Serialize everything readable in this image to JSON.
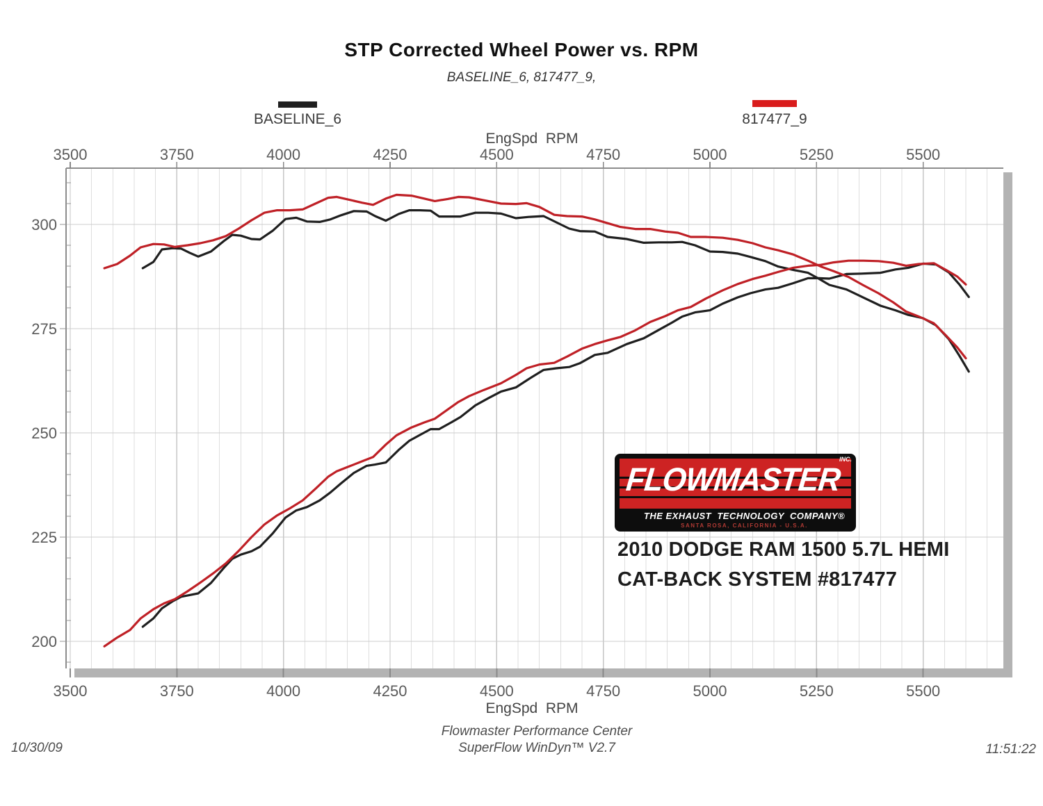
{
  "title": "STP Corrected Wheel Power vs. RPM",
  "subtitle": "BASELINE_6, 817477_9,",
  "legend": [
    {
      "label": "BASELINE_6",
      "color": "#1f1f1f"
    },
    {
      "label": "817477_9",
      "color": "#d91c1c"
    }
  ],
  "axes": {
    "top_label": "EngSpd  RPM",
    "bottom_label": "EngSpd  RPM",
    "x_ticks": [
      3500,
      3750,
      4000,
      4250,
      4500,
      4750,
      5000,
      5250,
      5500
    ],
    "y_ticks": [
      300,
      275,
      250,
      225,
      200
    ]
  },
  "annotation": {
    "line1": "2010 DODGE RAM 1500 5.7L HEMI",
    "line2": "CAT-BACK SYSTEM #817477"
  },
  "logo": {
    "brand": "FLOWMASTER",
    "inc": "INC.",
    "tagline": "THE EXHAUST  TECHNOLOGY  COMPANY®",
    "location": "SANTA ROSA, CALIFORNIA - U.S.A."
  },
  "footer": {
    "date": "10/30/09",
    "center_line1": "Flowmaster Performance Center",
    "center_line2": "SuperFlow WinDyn™ V2.7",
    "time": "11:51:22"
  },
  "chart_data": {
    "type": "line",
    "title": "STP Corrected Wheel Power vs. RPM",
    "subtitle": "BASELINE_6, 817477_9,",
    "xlabel": "EngSpd  RPM",
    "ylabel": "",
    "x_ticks": [
      3500,
      3750,
      4000,
      4250,
      4500,
      4750,
      5000,
      5250,
      5500
    ],
    "y_ticks": [
      200,
      225,
      250,
      275,
      300
    ],
    "x_range": [
      3490,
      5660
    ],
    "y_range": [
      193.5,
      313.5
    ],
    "grid": {
      "x_minor_step": 50,
      "x_major_step": 250,
      "y_major_step": 25,
      "y_tick_minor_step": 5
    },
    "legend_position": "top",
    "series": [
      {
        "name": "BASELINE_6",
        "curve": "upper (torque-shaped)",
        "color": "#1f1f1f",
        "points": [
          [
            3670,
            289.5
          ],
          [
            3695,
            291.0
          ],
          [
            3715,
            294.0
          ],
          [
            3740,
            294.3
          ],
          [
            3760,
            294.2
          ],
          [
            3780,
            293.2
          ],
          [
            3800,
            292.3
          ],
          [
            3830,
            293.5
          ],
          [
            3860,
            296.0
          ],
          [
            3880,
            297.5
          ],
          [
            3900,
            297.3
          ],
          [
            3925,
            296.5
          ],
          [
            3945,
            296.4
          ],
          [
            3975,
            298.5
          ],
          [
            4005,
            301.3
          ],
          [
            4030,
            301.6
          ],
          [
            4055,
            300.7
          ],
          [
            4085,
            300.6
          ],
          [
            4110,
            301.2
          ],
          [
            4135,
            302.2
          ],
          [
            4165,
            303.2
          ],
          [
            4195,
            303.1
          ],
          [
            4215,
            302.0
          ],
          [
            4240,
            300.9
          ],
          [
            4270,
            302.5
          ],
          [
            4295,
            303.4
          ],
          [
            4320,
            303.4
          ],
          [
            4345,
            303.3
          ],
          [
            4365,
            301.9
          ],
          [
            4395,
            301.9
          ],
          [
            4415,
            301.9
          ],
          [
            4450,
            302.8
          ],
          [
            4480,
            302.8
          ],
          [
            4510,
            302.6
          ],
          [
            4545,
            301.5
          ],
          [
            4575,
            301.8
          ],
          [
            4610,
            302.0
          ],
          [
            4640,
            300.5
          ],
          [
            4670,
            299.0
          ],
          [
            4695,
            298.4
          ],
          [
            4730,
            298.3
          ],
          [
            4760,
            297.0
          ],
          [
            4805,
            296.5
          ],
          [
            4845,
            295.6
          ],
          [
            4880,
            295.7
          ],
          [
            4910,
            295.7
          ],
          [
            4935,
            295.8
          ],
          [
            4965,
            295.0
          ],
          [
            5000,
            293.5
          ],
          [
            5030,
            293.4
          ],
          [
            5065,
            293.0
          ],
          [
            5095,
            292.2
          ],
          [
            5130,
            291.2
          ],
          [
            5160,
            289.9
          ],
          [
            5195,
            289.1
          ],
          [
            5230,
            288.4
          ],
          [
            5255,
            287.0
          ],
          [
            5280,
            285.5
          ],
          [
            5320,
            284.4
          ],
          [
            5355,
            282.7
          ],
          [
            5400,
            280.5
          ],
          [
            5435,
            279.4
          ],
          [
            5465,
            278.3
          ],
          [
            5500,
            277.5
          ],
          [
            5530,
            275.8
          ],
          [
            5560,
            272.5
          ],
          [
            5585,
            268.5
          ],
          [
            5607,
            264.7
          ]
        ]
      },
      {
        "name": "BASELINE_6",
        "curve": "power (rising)",
        "color": "#1f1f1f",
        "points": [
          [
            3670,
            203.5
          ],
          [
            3695,
            205.5
          ],
          [
            3715,
            207.9
          ],
          [
            3740,
            209.6
          ],
          [
            3760,
            210.7
          ],
          [
            3780,
            211.1
          ],
          [
            3800,
            211.5
          ],
          [
            3830,
            214.0
          ],
          [
            3860,
            217.6
          ],
          [
            3880,
            219.8
          ],
          [
            3900,
            220.8
          ],
          [
            3925,
            221.6
          ],
          [
            3945,
            222.7
          ],
          [
            3975,
            225.9
          ],
          [
            4005,
            229.7
          ],
          [
            4030,
            231.4
          ],
          [
            4055,
            232.2
          ],
          [
            4085,
            233.8
          ],
          [
            4110,
            235.7
          ],
          [
            4135,
            237.9
          ],
          [
            4165,
            240.4
          ],
          [
            4195,
            242.1
          ],
          [
            4215,
            242.4
          ],
          [
            4240,
            242.9
          ],
          [
            4270,
            245.9
          ],
          [
            4295,
            248.1
          ],
          [
            4320,
            249.5
          ],
          [
            4345,
            250.9
          ],
          [
            4365,
            250.9
          ],
          [
            4395,
            252.6
          ],
          [
            4415,
            253.8
          ],
          [
            4450,
            256.6
          ],
          [
            4480,
            258.3
          ],
          [
            4510,
            259.9
          ],
          [
            4545,
            260.9
          ],
          [
            4575,
            262.9
          ],
          [
            4610,
            265.1
          ],
          [
            4640,
            265.5
          ],
          [
            4670,
            265.8
          ],
          [
            4695,
            266.7
          ],
          [
            4730,
            268.7
          ],
          [
            4760,
            269.2
          ],
          [
            4805,
            271.3
          ],
          [
            4845,
            272.7
          ],
          [
            4880,
            274.7
          ],
          [
            4910,
            276.4
          ],
          [
            4935,
            277.9
          ],
          [
            4965,
            278.9
          ],
          [
            5000,
            279.4
          ],
          [
            5030,
            281.0
          ],
          [
            5065,
            282.5
          ],
          [
            5095,
            283.5
          ],
          [
            5130,
            284.4
          ],
          [
            5160,
            284.8
          ],
          [
            5195,
            285.9
          ],
          [
            5230,
            287.1
          ],
          [
            5255,
            287.1
          ],
          [
            5280,
            287.0
          ],
          [
            5320,
            288.1
          ],
          [
            5355,
            288.2
          ],
          [
            5400,
            288.4
          ],
          [
            5435,
            289.2
          ],
          [
            5465,
            289.6
          ],
          [
            5500,
            290.6
          ],
          [
            5530,
            290.4
          ],
          [
            5560,
            288.5
          ],
          [
            5585,
            285.6
          ],
          [
            5607,
            282.6
          ]
        ]
      },
      {
        "name": "817477_9",
        "curve": "upper (torque-shaped)",
        "color": "#bf2026",
        "points": [
          [
            3580,
            289.5
          ],
          [
            3610,
            290.5
          ],
          [
            3640,
            292.5
          ],
          [
            3665,
            294.5
          ],
          [
            3695,
            295.3
          ],
          [
            3720,
            295.2
          ],
          [
            3745,
            294.6
          ],
          [
            3775,
            295.0
          ],
          [
            3805,
            295.5
          ],
          [
            3835,
            296.2
          ],
          [
            3865,
            297.2
          ],
          [
            3895,
            299.0
          ],
          [
            3925,
            301.0
          ],
          [
            3955,
            302.8
          ],
          [
            3985,
            303.4
          ],
          [
            4015,
            303.4
          ],
          [
            4045,
            303.6
          ],
          [
            4075,
            305.0
          ],
          [
            4105,
            306.4
          ],
          [
            4125,
            306.6
          ],
          [
            4155,
            305.9
          ],
          [
            4185,
            305.2
          ],
          [
            4210,
            304.7
          ],
          [
            4240,
            306.2
          ],
          [
            4265,
            307.1
          ],
          [
            4300,
            306.9
          ],
          [
            4330,
            306.2
          ],
          [
            4355,
            305.6
          ],
          [
            4385,
            306.1
          ],
          [
            4410,
            306.6
          ],
          [
            4435,
            306.5
          ],
          [
            4470,
            305.8
          ],
          [
            4510,
            305.0
          ],
          [
            4545,
            304.9
          ],
          [
            4570,
            305.1
          ],
          [
            4600,
            304.2
          ],
          [
            4635,
            302.3
          ],
          [
            4665,
            302.0
          ],
          [
            4700,
            301.9
          ],
          [
            4730,
            301.2
          ],
          [
            4760,
            300.3
          ],
          [
            4790,
            299.4
          ],
          [
            4825,
            298.9
          ],
          [
            4860,
            298.9
          ],
          [
            4895,
            298.3
          ],
          [
            4925,
            298.0
          ],
          [
            4955,
            297.0
          ],
          [
            4990,
            297.0
          ],
          [
            5030,
            296.8
          ],
          [
            5065,
            296.3
          ],
          [
            5100,
            295.5
          ],
          [
            5130,
            294.5
          ],
          [
            5160,
            293.8
          ],
          [
            5195,
            292.8
          ],
          [
            5230,
            291.3
          ],
          [
            5260,
            289.9
          ],
          [
            5290,
            288.8
          ],
          [
            5325,
            287.4
          ],
          [
            5360,
            285.4
          ],
          [
            5395,
            283.5
          ],
          [
            5430,
            281.3
          ],
          [
            5460,
            279.1
          ],
          [
            5490,
            277.9
          ],
          [
            5525,
            276.3
          ],
          [
            5555,
            273.2
          ],
          [
            5580,
            270.5
          ],
          [
            5600,
            267.9
          ]
        ]
      },
      {
        "name": "817477_9",
        "curve": "power (rising)",
        "color": "#bf2026",
        "points": [
          [
            3580,
            198.8
          ],
          [
            3610,
            200.9
          ],
          [
            3640,
            202.7
          ],
          [
            3665,
            205.5
          ],
          [
            3695,
            207.7
          ],
          [
            3720,
            209.1
          ],
          [
            3745,
            210.1
          ],
          [
            3775,
            212.0
          ],
          [
            3805,
            214.1
          ],
          [
            3835,
            216.3
          ],
          [
            3865,
            218.7
          ],
          [
            3895,
            221.7
          ],
          [
            3925,
            225.0
          ],
          [
            3955,
            228.0
          ],
          [
            3985,
            230.2
          ],
          [
            4015,
            231.9
          ],
          [
            4045,
            233.8
          ],
          [
            4075,
            236.6
          ],
          [
            4105,
            239.5
          ],
          [
            4125,
            240.8
          ],
          [
            4155,
            242.0
          ],
          [
            4185,
            243.2
          ],
          [
            4210,
            244.2
          ],
          [
            4240,
            247.2
          ],
          [
            4265,
            249.4
          ],
          [
            4300,
            251.3
          ],
          [
            4330,
            252.5
          ],
          [
            4355,
            253.4
          ],
          [
            4385,
            255.6
          ],
          [
            4410,
            257.4
          ],
          [
            4435,
            258.8
          ],
          [
            4470,
            260.3
          ],
          [
            4510,
            261.9
          ],
          [
            4545,
            263.9
          ],
          [
            4570,
            265.5
          ],
          [
            4600,
            266.4
          ],
          [
            4635,
            266.8
          ],
          [
            4665,
            268.3
          ],
          [
            4700,
            270.2
          ],
          [
            4730,
            271.3
          ],
          [
            4760,
            272.2
          ],
          [
            4790,
            273.0
          ],
          [
            4825,
            274.6
          ],
          [
            4860,
            276.6
          ],
          [
            4895,
            278.0
          ],
          [
            4925,
            279.4
          ],
          [
            4955,
            280.2
          ],
          [
            4990,
            282.2
          ],
          [
            5030,
            284.2
          ],
          [
            5065,
            285.7
          ],
          [
            5100,
            286.9
          ],
          [
            5130,
            287.7
          ],
          [
            5160,
            288.6
          ],
          [
            5195,
            289.6
          ],
          [
            5230,
            290.1
          ],
          [
            5260,
            290.3
          ],
          [
            5290,
            290.9
          ],
          [
            5325,
            291.3
          ],
          [
            5360,
            291.3
          ],
          [
            5395,
            291.2
          ],
          [
            5430,
            290.8
          ],
          [
            5460,
            290.1
          ],
          [
            5490,
            290.5
          ],
          [
            5525,
            290.7
          ],
          [
            5555,
            289.0
          ],
          [
            5580,
            287.5
          ],
          [
            5600,
            285.6
          ]
        ]
      }
    ]
  }
}
